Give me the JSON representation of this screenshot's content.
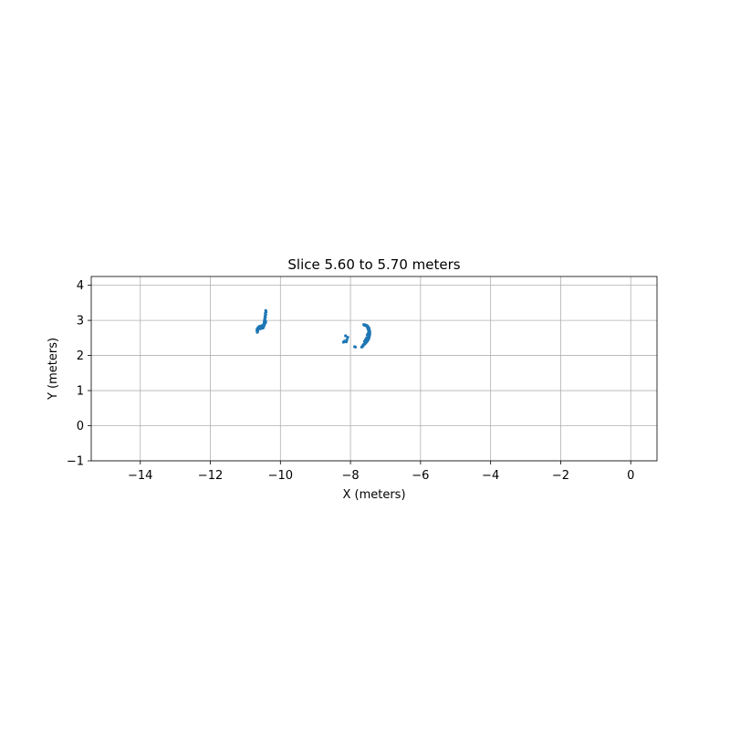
{
  "chart_data": {
    "type": "scatter",
    "title": "Slice 5.60 to 5.70 meters",
    "xlabel": "X (meters)",
    "ylabel": "Y (meters)",
    "xlim": [
      -15.4,
      0.75
    ],
    "ylim": [
      -1.0,
      4.25
    ],
    "xticks": [
      -14,
      -12,
      -10,
      -8,
      -6,
      -4,
      -2,
      0
    ],
    "yticks": [
      -1,
      0,
      1,
      2,
      3,
      4
    ],
    "xtick_labels": [
      "−14",
      "−12",
      "−10",
      "−8",
      "−6",
      "−4",
      "−2",
      "0"
    ],
    "ytick_labels": [
      "−1",
      "0",
      "1",
      "2",
      "3",
      "4"
    ],
    "grid": true,
    "point_color": "#1f77b4",
    "series": [
      {
        "x": [
          -10.42,
          -10.41,
          -10.43,
          -10.42,
          -10.44,
          -10.43,
          -10.45,
          -10.44,
          -10.46,
          -10.45,
          -10.47,
          -10.46,
          -10.48,
          -10.47,
          -10.49,
          -10.5,
          -10.49,
          -10.52,
          -10.51,
          -10.54,
          -10.56,
          -10.55,
          -10.58,
          -10.6,
          -10.59,
          -10.62,
          -10.64,
          -10.63,
          -10.66,
          -10.65,
          -10.67,
          -10.66,
          -10.65,
          -10.64,
          -10.66,
          -10.63,
          -10.61,
          -10.58,
          -10.55,
          -10.52,
          -10.49,
          -10.47,
          -10.45,
          -10.43,
          -10.42,
          -10.44,
          -10.46,
          -10.48,
          -10.5,
          -10.53,
          -10.57,
          -10.6,
          -10.62,
          -10.65
        ],
        "y": [
          3.28,
          3.24,
          3.2,
          3.16,
          3.12,
          3.08,
          3.04,
          3.0,
          2.97,
          2.94,
          2.91,
          2.88,
          2.86,
          2.84,
          2.82,
          2.81,
          2.79,
          2.8,
          2.78,
          2.79,
          2.8,
          2.77,
          2.78,
          2.79,
          2.76,
          2.77,
          2.78,
          2.75,
          2.76,
          2.73,
          2.72,
          2.7,
          2.68,
          2.74,
          2.66,
          2.8,
          2.82,
          2.83,
          2.84,
          2.85,
          2.86,
          2.88,
          2.9,
          2.93,
          2.96,
          2.99,
          2.92,
          2.87,
          2.83,
          2.81,
          2.8,
          2.82,
          2.78,
          2.75
        ]
      },
      {
        "x": [
          -7.62,
          -7.58,
          -7.55,
          -7.52,
          -7.5,
          -7.48,
          -7.47,
          -7.46,
          -7.45,
          -7.45,
          -7.45,
          -7.46,
          -7.47,
          -7.48,
          -7.5,
          -7.52,
          -7.55,
          -7.58,
          -7.61,
          -7.63,
          -7.66,
          -7.6,
          -7.56,
          -7.53,
          -7.5,
          -7.49,
          -7.48,
          -7.47,
          -7.48,
          -7.5,
          -7.52,
          -7.54,
          -7.57,
          -7.6,
          -7.64,
          -7.68,
          -7.51,
          -7.49,
          -7.46,
          -7.47,
          -7.5,
          -7.53,
          -7.56,
          -7.59
        ],
        "y": [
          2.88,
          2.87,
          2.86,
          2.84,
          2.82,
          2.79,
          2.76,
          2.72,
          2.68,
          2.64,
          2.6,
          2.56,
          2.52,
          2.48,
          2.44,
          2.41,
          2.38,
          2.35,
          2.32,
          2.29,
          2.25,
          2.86,
          2.85,
          2.83,
          2.8,
          2.77,
          2.74,
          2.7,
          2.66,
          2.62,
          2.58,
          2.5,
          2.45,
          2.4,
          2.3,
          2.24,
          2.78,
          2.73,
          2.67,
          2.55,
          2.47,
          2.43,
          2.36,
          2.33
        ]
      },
      {
        "x": [
          -8.15,
          -8.12,
          -8.2,
          -8.17,
          -8.1,
          -8.08,
          -8.14,
          -7.88,
          -7.86
        ],
        "y": [
          2.4,
          2.39,
          2.38,
          2.41,
          2.45,
          2.52,
          2.56,
          2.25,
          2.24
        ]
      }
    ]
  }
}
